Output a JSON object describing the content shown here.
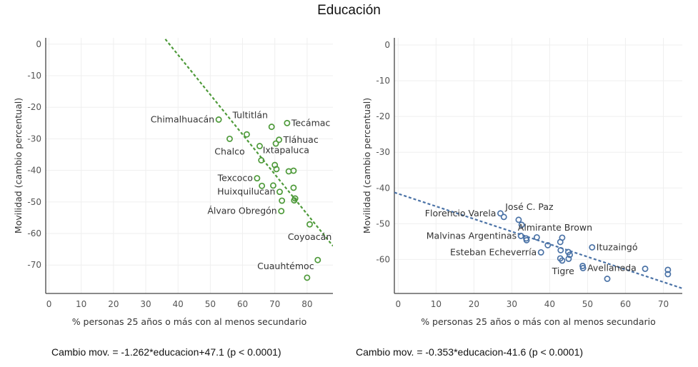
{
  "title": "Educación",
  "chart_data": [
    {
      "type": "scatter",
      "id": "left",
      "xlabel": "% personas 25 años o más con al menos secundario",
      "ylabel": "Movilidad (cambio percentual)",
      "xlim": [
        -1,
        88
      ],
      "ylim": [
        -79,
        2
      ],
      "xticks": [
        0,
        10,
        20,
        30,
        40,
        50,
        60,
        70,
        80
      ],
      "yticks": [
        0,
        -10,
        -20,
        -30,
        -40,
        -50,
        -60,
        -70
      ],
      "grid": true,
      "color": "#4e9a3a",
      "trend": {
        "slope": -1.262,
        "intercept": 47.1
      },
      "equation": "Cambio mov. = -1.262*educacion+47.1 (p < 0.0001)",
      "points": [
        {
          "x": 52.6,
          "y": -23.9,
          "label": "Chimalhuacán",
          "label_pos": "left"
        },
        {
          "x": 69.0,
          "y": -26.2,
          "label": "Tultitlán",
          "label_pos": "above-left"
        },
        {
          "x": 73.8,
          "y": -25.0,
          "label": "Tecámac",
          "label_pos": "right"
        },
        {
          "x": 61.3,
          "y": -28.6,
          "label": ""
        },
        {
          "x": 56.0,
          "y": -30.0,
          "label": "Chalco",
          "label_pos": "below"
        },
        {
          "x": 71.3,
          "y": -30.3,
          "label": "Tláhuac",
          "label_pos": "right"
        },
        {
          "x": 70.3,
          "y": -31.5,
          "label": ""
        },
        {
          "x": 65.3,
          "y": -32.3,
          "label": ""
        },
        {
          "x": 65.8,
          "y": -36.8,
          "label": "Ixtapaluca",
          "label_pos": "above-right"
        },
        {
          "x": 70.0,
          "y": -38.3,
          "label": ""
        },
        {
          "x": 70.5,
          "y": -39.6,
          "label": ""
        },
        {
          "x": 74.3,
          "y": -40.3,
          "label": ""
        },
        {
          "x": 75.8,
          "y": -40.1,
          "label": ""
        },
        {
          "x": 64.5,
          "y": -42.5,
          "label": "Texcoco",
          "label_pos": "left"
        },
        {
          "x": 66.0,
          "y": -44.9,
          "label": ""
        },
        {
          "x": 69.5,
          "y": -44.8,
          "label": ""
        },
        {
          "x": 75.8,
          "y": -45.5,
          "label": ""
        },
        {
          "x": 71.5,
          "y": -46.8,
          "label": "Huixquilucan",
          "label_pos": "left"
        },
        {
          "x": 72.2,
          "y": -49.6,
          "label": ""
        },
        {
          "x": 76.0,
          "y": -49.5,
          "label": ""
        },
        {
          "x": 76.3,
          "y": -48.9,
          "label": ""
        },
        {
          "x": 72.0,
          "y": -52.9,
          "label": "Álvaro Obregón",
          "label_pos": "left"
        },
        {
          "x": 80.8,
          "y": -57.1,
          "label": "Coyoacán",
          "label_pos": "below"
        },
        {
          "x": 83.3,
          "y": -68.4,
          "label": ""
        },
        {
          "x": 80.0,
          "y": -74.0,
          "label": "Cuauhtémoc",
          "label_pos": "above-left"
        }
      ]
    },
    {
      "type": "scatter",
      "id": "right",
      "xlabel": "% personas 25 años o más con al menos secundario",
      "ylabel": "Movilidad (cambio percentual)",
      "xlim": [
        -1,
        75
      ],
      "ylim": [
        -69.5,
        2
      ],
      "xticks": [
        0,
        10,
        20,
        30,
        40,
        50,
        60,
        70
      ],
      "yticks": [
        0,
        -10,
        -20,
        -30,
        -40,
        -50,
        -60
      ],
      "grid": true,
      "color": "#4a72a6",
      "trend": {
        "slope": -0.353,
        "intercept": -41.6
      },
      "equation": "Cambio mov. = -0.353*educacion-41.6 (p < 0.0001)",
      "points": [
        {
          "x": 27.0,
          "y": -47.1,
          "label": "Florencio Varela",
          "label_pos": "left"
        },
        {
          "x": 27.9,
          "y": -48.1,
          "label": "José C. Paz",
          "label_pos": "above-right"
        },
        {
          "x": 31.8,
          "y": -48.9,
          "label": ""
        },
        {
          "x": 32.6,
          "y": -50.3,
          "label": ""
        },
        {
          "x": 32.4,
          "y": -53.4,
          "label": "Malvinas Argentinas",
          "label_pos": "left"
        },
        {
          "x": 33.8,
          "y": -54.1,
          "label": ""
        },
        {
          "x": 33.9,
          "y": -54.6,
          "label": ""
        },
        {
          "x": 36.6,
          "y": -53.8,
          "label": ""
        },
        {
          "x": 39.5,
          "y": -56.0,
          "label": ""
        },
        {
          "x": 37.7,
          "y": -58.0,
          "label": "Esteban Echeverría",
          "label_pos": "left"
        },
        {
          "x": 43.3,
          "y": -53.9,
          "label": "Almirante Brown",
          "label_pos": "above"
        },
        {
          "x": 42.8,
          "y": -55.1,
          "label": ""
        },
        {
          "x": 42.9,
          "y": -57.4,
          "label": ""
        },
        {
          "x": 44.9,
          "y": -57.9,
          "label": ""
        },
        {
          "x": 45.3,
          "y": -58.7,
          "label": ""
        },
        {
          "x": 42.8,
          "y": -59.7,
          "label": "Tigre",
          "label_pos": "below"
        },
        {
          "x": 43.3,
          "y": -60.3,
          "label": ""
        },
        {
          "x": 45.0,
          "y": -59.8,
          "label": ""
        },
        {
          "x": 48.7,
          "y": -61.8,
          "label": ""
        },
        {
          "x": 48.8,
          "y": -62.4,
          "label": "Avellaneda",
          "label_pos": "right"
        },
        {
          "x": 51.2,
          "y": -56.6,
          "label": "Ituzaingó",
          "label_pos": "right"
        },
        {
          "x": 55.2,
          "y": -65.4,
          "label": ""
        },
        {
          "x": 65.2,
          "y": -62.6,
          "label": ""
        },
        {
          "x": 71.2,
          "y": -62.9,
          "label": ""
        },
        {
          "x": 71.2,
          "y": -64.1,
          "label": ""
        }
      ]
    }
  ]
}
